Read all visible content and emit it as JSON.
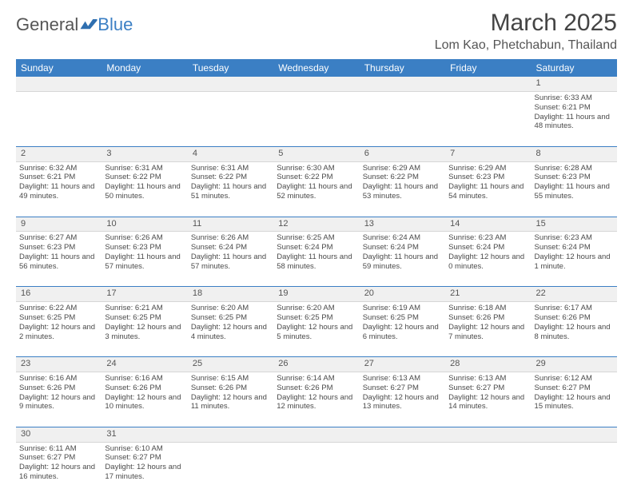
{
  "logo": {
    "part1": "General",
    "part2": "Blue"
  },
  "title": "March 2025",
  "location": "Lom Kao, Phetchabun, Thailand",
  "colors": {
    "header_bg": "#3b7fc4",
    "header_text": "#ffffff",
    "daynum_bg": "#f0f0f0",
    "border": "#c8c8c8",
    "accent_border": "#3b7fc4"
  },
  "dayHeaders": [
    "Sunday",
    "Monday",
    "Tuesday",
    "Wednesday",
    "Thursday",
    "Friday",
    "Saturday"
  ],
  "weeks": [
    [
      null,
      null,
      null,
      null,
      null,
      null,
      {
        "n": "1",
        "sunrise": "6:33 AM",
        "sunset": "6:21 PM",
        "daylight": "11 hours and 48 minutes."
      }
    ],
    [
      {
        "n": "2",
        "sunrise": "6:32 AM",
        "sunset": "6:21 PM",
        "daylight": "11 hours and 49 minutes."
      },
      {
        "n": "3",
        "sunrise": "6:31 AM",
        "sunset": "6:22 PM",
        "daylight": "11 hours and 50 minutes."
      },
      {
        "n": "4",
        "sunrise": "6:31 AM",
        "sunset": "6:22 PM",
        "daylight": "11 hours and 51 minutes."
      },
      {
        "n": "5",
        "sunrise": "6:30 AM",
        "sunset": "6:22 PM",
        "daylight": "11 hours and 52 minutes."
      },
      {
        "n": "6",
        "sunrise": "6:29 AM",
        "sunset": "6:22 PM",
        "daylight": "11 hours and 53 minutes."
      },
      {
        "n": "7",
        "sunrise": "6:29 AM",
        "sunset": "6:23 PM",
        "daylight": "11 hours and 54 minutes."
      },
      {
        "n": "8",
        "sunrise": "6:28 AM",
        "sunset": "6:23 PM",
        "daylight": "11 hours and 55 minutes."
      }
    ],
    [
      {
        "n": "9",
        "sunrise": "6:27 AM",
        "sunset": "6:23 PM",
        "daylight": "11 hours and 56 minutes."
      },
      {
        "n": "10",
        "sunrise": "6:26 AM",
        "sunset": "6:23 PM",
        "daylight": "11 hours and 57 minutes."
      },
      {
        "n": "11",
        "sunrise": "6:26 AM",
        "sunset": "6:24 PM",
        "daylight": "11 hours and 57 minutes."
      },
      {
        "n": "12",
        "sunrise": "6:25 AM",
        "sunset": "6:24 PM",
        "daylight": "11 hours and 58 minutes."
      },
      {
        "n": "13",
        "sunrise": "6:24 AM",
        "sunset": "6:24 PM",
        "daylight": "11 hours and 59 minutes."
      },
      {
        "n": "14",
        "sunrise": "6:23 AM",
        "sunset": "6:24 PM",
        "daylight": "12 hours and 0 minutes."
      },
      {
        "n": "15",
        "sunrise": "6:23 AM",
        "sunset": "6:24 PM",
        "daylight": "12 hours and 1 minute."
      }
    ],
    [
      {
        "n": "16",
        "sunrise": "6:22 AM",
        "sunset": "6:25 PM",
        "daylight": "12 hours and 2 minutes."
      },
      {
        "n": "17",
        "sunrise": "6:21 AM",
        "sunset": "6:25 PM",
        "daylight": "12 hours and 3 minutes."
      },
      {
        "n": "18",
        "sunrise": "6:20 AM",
        "sunset": "6:25 PM",
        "daylight": "12 hours and 4 minutes."
      },
      {
        "n": "19",
        "sunrise": "6:20 AM",
        "sunset": "6:25 PM",
        "daylight": "12 hours and 5 minutes."
      },
      {
        "n": "20",
        "sunrise": "6:19 AM",
        "sunset": "6:25 PM",
        "daylight": "12 hours and 6 minutes."
      },
      {
        "n": "21",
        "sunrise": "6:18 AM",
        "sunset": "6:26 PM",
        "daylight": "12 hours and 7 minutes."
      },
      {
        "n": "22",
        "sunrise": "6:17 AM",
        "sunset": "6:26 PM",
        "daylight": "12 hours and 8 minutes."
      }
    ],
    [
      {
        "n": "23",
        "sunrise": "6:16 AM",
        "sunset": "6:26 PM",
        "daylight": "12 hours and 9 minutes."
      },
      {
        "n": "24",
        "sunrise": "6:16 AM",
        "sunset": "6:26 PM",
        "daylight": "12 hours and 10 minutes."
      },
      {
        "n": "25",
        "sunrise": "6:15 AM",
        "sunset": "6:26 PM",
        "daylight": "12 hours and 11 minutes."
      },
      {
        "n": "26",
        "sunrise": "6:14 AM",
        "sunset": "6:26 PM",
        "daylight": "12 hours and 12 minutes."
      },
      {
        "n": "27",
        "sunrise": "6:13 AM",
        "sunset": "6:27 PM",
        "daylight": "12 hours and 13 minutes."
      },
      {
        "n": "28",
        "sunrise": "6:13 AM",
        "sunset": "6:27 PM",
        "daylight": "12 hours and 14 minutes."
      },
      {
        "n": "29",
        "sunrise": "6:12 AM",
        "sunset": "6:27 PM",
        "daylight": "12 hours and 15 minutes."
      }
    ],
    [
      {
        "n": "30",
        "sunrise": "6:11 AM",
        "sunset": "6:27 PM",
        "daylight": "12 hours and 16 minutes."
      },
      {
        "n": "31",
        "sunrise": "6:10 AM",
        "sunset": "6:27 PM",
        "daylight": "12 hours and 17 minutes."
      },
      null,
      null,
      null,
      null,
      null
    ]
  ],
  "labels": {
    "sunrise": "Sunrise: ",
    "sunset": "Sunset: ",
    "daylight": "Daylight: "
  }
}
